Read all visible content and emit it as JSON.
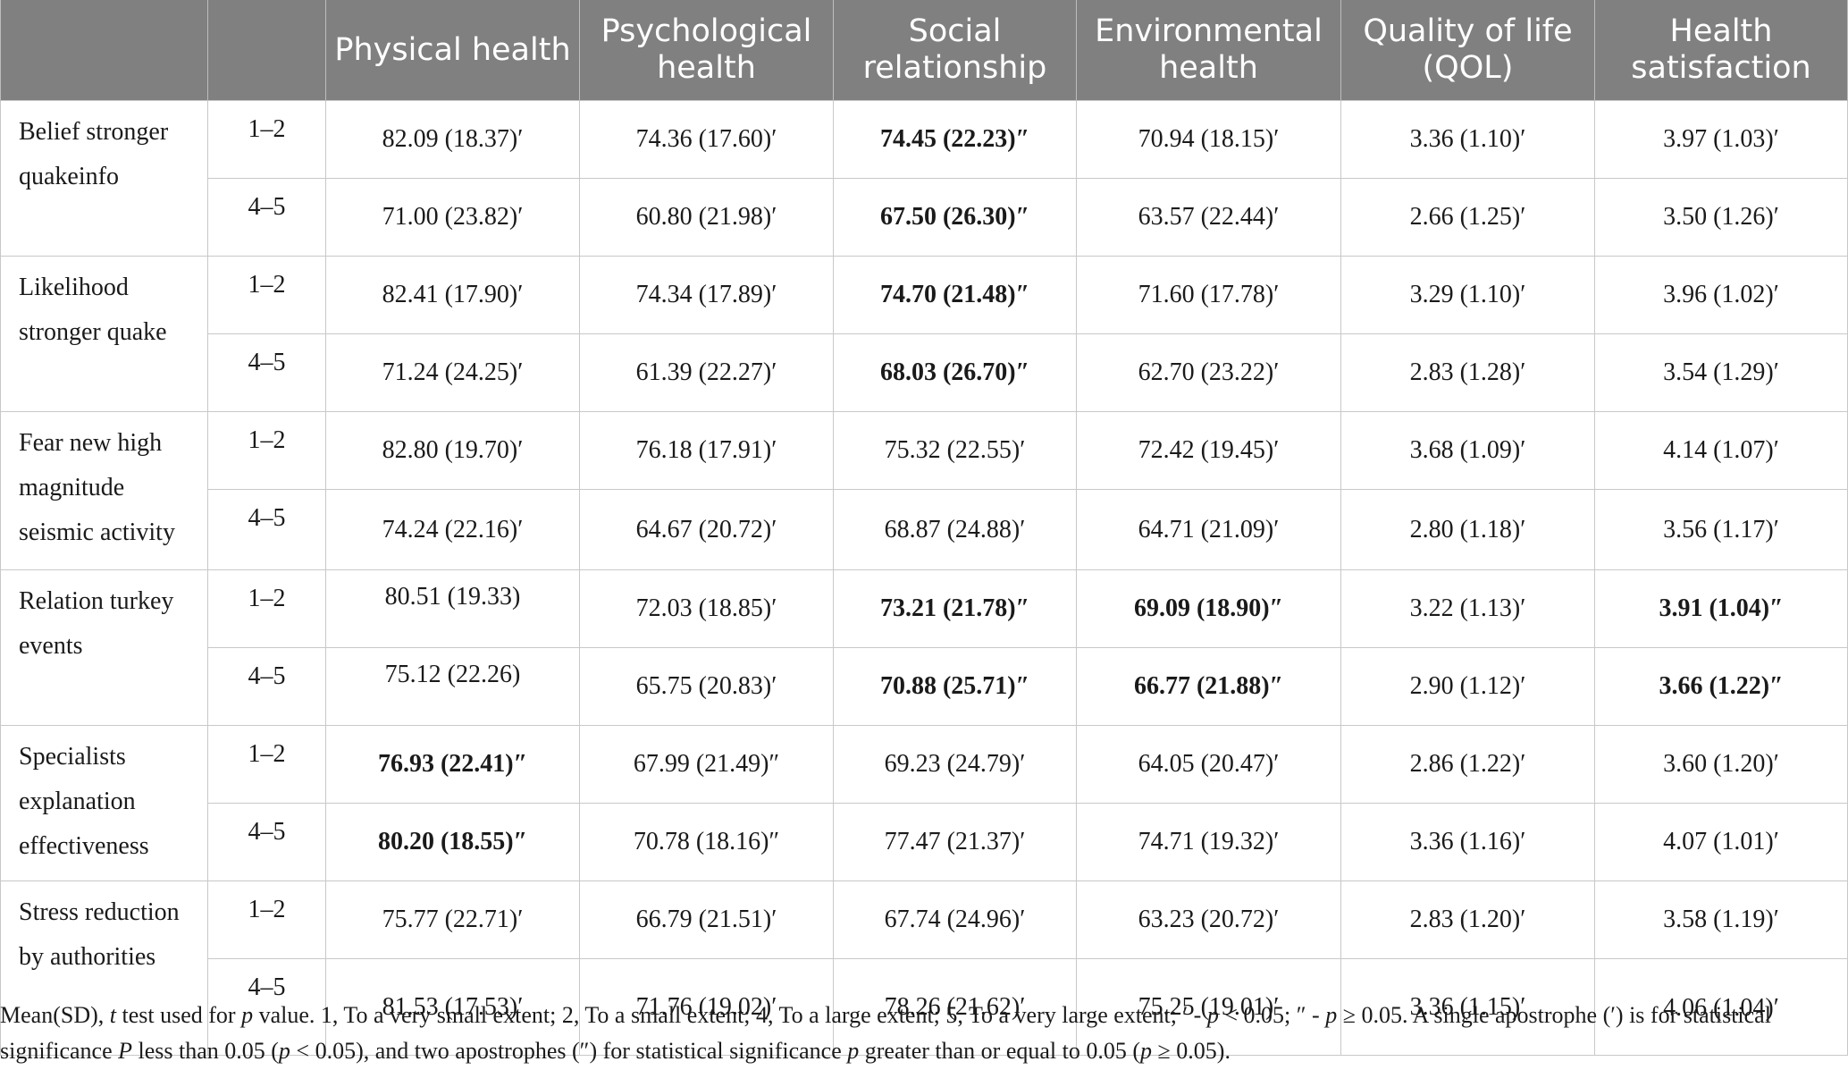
{
  "table": {
    "headers": [
      "",
      "",
      "Physical health",
      "Psychological health",
      "Social relationship",
      "Environmental health",
      "Quality of life (QOL)",
      "Health satisfaction"
    ],
    "groups": [
      {
        "label": "Belief stronger quakeinfo",
        "rows": [
          {
            "level": "1–2",
            "cells": [
              "82.09 (18.37)′",
              "74.36 (17.60)′",
              "74.45 (22.23)″",
              "70.94 (18.15)′",
              "3.36 (1.10)′",
              "3.97 (1.03)′"
            ]
          },
          {
            "level": "4–5",
            "cells": [
              "71.00 (23.82)′",
              "60.80 (21.98)′",
              "67.50 (26.30)″",
              "63.57 (22.44)′",
              "2.66 (1.25)′",
              "3.50 (1.26)′"
            ]
          }
        ]
      },
      {
        "label": "Likelihood stronger quake",
        "rows": [
          {
            "level": "1–2",
            "cells": [
              "82.41 (17.90)′",
              "74.34 (17.89)′",
              "74.70 (21.48)″",
              "71.60 (17.78)′",
              "3.29 (1.10)′",
              "3.96 (1.02)′"
            ]
          },
          {
            "level": "4–5",
            "cells": [
              "71.24 (24.25)′",
              "61.39 (22.27)′",
              "68.03 (26.70)″",
              "62.70 (23.22)′",
              "2.83 (1.28)′",
              "3.54 (1.29)′"
            ]
          }
        ]
      },
      {
        "label": "Fear new high magnitude seismic activity",
        "rows": [
          {
            "level": "1–2",
            "cells": [
              "82.80 (19.70)′",
              "76.18 (17.91)′",
              "75.32 (22.55)′",
              "72.42 (19.45)′",
              "3.68 (1.09)′",
              "4.14 (1.07)′"
            ]
          },
          {
            "level": "4–5",
            "cells": [
              "74.24 (22.16)′",
              "64.67 (20.72)′",
              "68.87 (24.88)′",
              "64.71 (21.09)′",
              "2.80 (1.18)′",
              "3.56 (1.17)′"
            ]
          }
        ]
      },
      {
        "label": "Relation turkey events",
        "rows": [
          {
            "level": "1–2",
            "cells": [
              "80.51 (19.33)",
              "72.03 (18.85)′",
              "73.21 (21.78)″",
              "69.09 (18.90)″",
              "3.22 (1.13)′",
              "3.91 (1.04)″"
            ]
          },
          {
            "level": "4–5",
            "cells": [
              "75.12 (22.26)",
              "65.75 (20.83)′",
              "70.88 (25.71)″",
              "66.77 (21.88)″",
              "2.90 (1.12)′",
              "3.66 (1.22)″"
            ]
          }
        ]
      },
      {
        "label": "Specialists explanation effectiveness",
        "rows": [
          {
            "level": "1–2",
            "cells": [
              "76.93 (22.41)″",
              "67.99 (21.49)″",
              "69.23 (24.79)′",
              "64.05 (20.47)′",
              "2.86 (1.22)′",
              "3.60 (1.20)′"
            ]
          },
          {
            "level": "4–5",
            "cells": [
              "80.20 (18.55)″",
              "70.78 (18.16)″",
              "77.47 (21.37)′",
              "74.71 (19.32)′",
              "3.36 (1.16)′",
              "4.07 (1.01)′"
            ]
          }
        ]
      },
      {
        "label": "Stress reduction by authorities",
        "rows": [
          {
            "level": "1–2",
            "cells": [
              "75.77 (22.71)′",
              "66.79 (21.51)′",
              "67.74 (24.96)′",
              "63.23 (20.72)′",
              "2.83 (1.20)′",
              "3.58 (1.19)′"
            ]
          },
          {
            "level": "4–5",
            "cells": [
              "81.53 (17.53)′",
              "71.76 (19.02)′",
              "78.26 (21.62)′",
              "75.25 (19.01)′",
              "3.36 (1.15)′",
              "4.06 (1.04)′"
            ]
          }
        ]
      }
    ]
  },
  "footnote": {
    "p1": "Mean(SD), ",
    "t": "t",
    "p2": " test used for ",
    "p": "p",
    "p3": " value. 1, To a very small extent; 2, To a small extent; 4, To a large extent; 5, To a very large extent; ′ - ",
    "p4": " < 0.05; ″ - ",
    "p5": " ≥ 0.05. A single apostrophe (′) is for statistical significance ",
    "P": "P",
    "p6": " less than 0.05 (",
    "p7": " < 0.05), and two apostrophes (″) for statistical significance ",
    "p8": " greater than or equal to 0.05 (",
    "p9": " ≥ 0.05)."
  }
}
